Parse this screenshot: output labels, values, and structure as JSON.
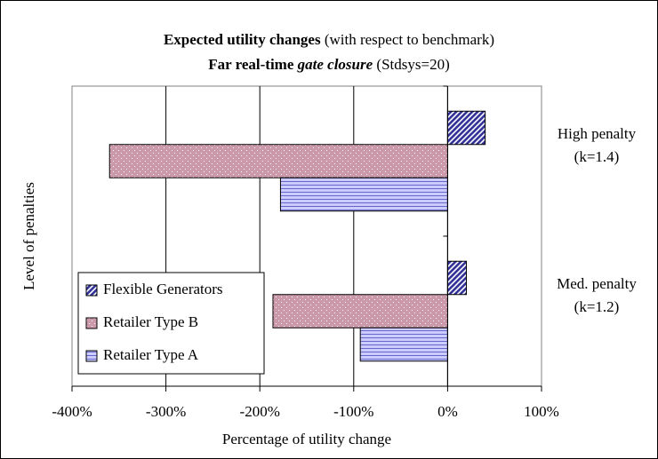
{
  "chart_data": {
    "type": "barh",
    "title": [
      "Expected utility changes",
      "(with respect to benchmark)"
    ],
    "subtitle": [
      "Far real-time",
      "gate closure",
      "(Stdsys=20)"
    ],
    "x_label": "Percentage of utility change",
    "y_label": "Level of penalties",
    "categories": [
      "High penalty (k=1.4)",
      "Med. penalty (k=1.2)"
    ],
    "series": [
      {
        "name": "Flexible Generators",
        "color": "#333399",
        "values": [
          40,
          20
        ]
      },
      {
        "name": "Retailer Type B",
        "color": "#cc99aa",
        "values": [
          -360,
          -186
        ]
      },
      {
        "name": "Retailer Type A",
        "color": "#ccccff",
        "values": [
          -178,
          -93
        ]
      }
    ],
    "xlim": [
      -400,
      100
    ],
    "xticks": [
      {
        "value": -400,
        "label": "-400%"
      },
      {
        "value": -300,
        "label": "-300%"
      },
      {
        "value": -200,
        "label": "-200%"
      },
      {
        "value": -100,
        "label": "-100%"
      },
      {
        "value": 0,
        "label": "0%"
      },
      {
        "value": 100,
        "label": "100%"
      }
    ],
    "grid": true,
    "legend": "lower-left"
  }
}
